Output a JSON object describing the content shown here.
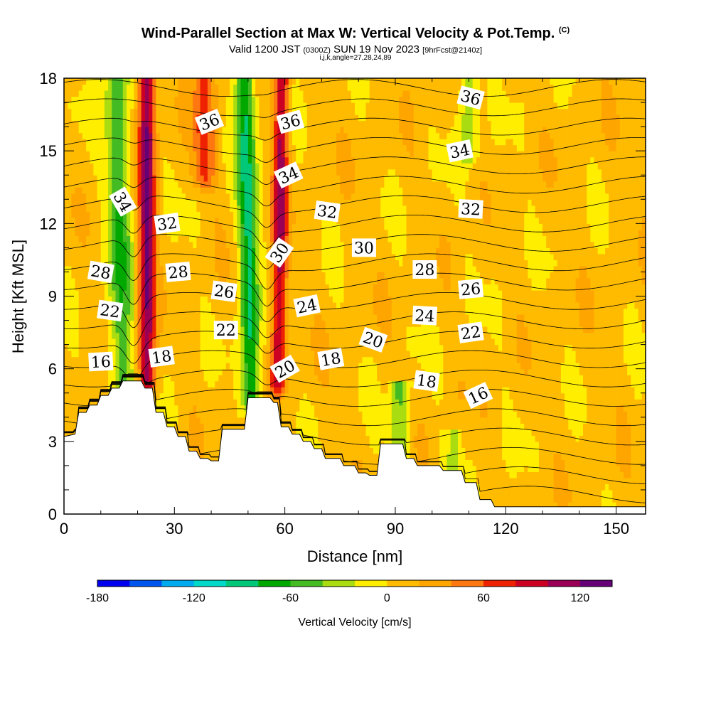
{
  "title_main": "Wind-Parallel Section at Max W: Vertical Velocity & Pot.Temp.",
  "title_tag": "(C)",
  "subtitle_a": "Valid 1200 JST",
  "subtitle_b": "(0300Z)",
  "subtitle_c": "SUN 19 Nov 2023",
  "subtitle_d": "[9hrFcst@2140z]",
  "subtitle2": "i,j,k,angle=27,28,24,89",
  "chart_data": {
    "type": "heatmap",
    "xlabel": "Distance [nm]",
    "ylabel": "Height [Kft MSL]",
    "xlim": [
      0,
      158
    ],
    "ylim": [
      0,
      18
    ],
    "x_ticks": [
      "0",
      "30",
      "60",
      "90",
      "120",
      "150"
    ],
    "x_tick_values": [
      0,
      30,
      60,
      90,
      120,
      150
    ],
    "y_ticks": [
      "0",
      "3",
      "6",
      "9",
      "12",
      "15",
      "18"
    ],
    "y_tick_values": [
      0,
      3,
      6,
      9,
      12,
      15,
      18
    ],
    "colorbar": {
      "label": "Vertical Velocity [cm/s]",
      "tick_labels": [
        "-180",
        "-120",
        "-60",
        "0",
        "60",
        "120"
      ],
      "tick_values": [
        -180,
        -120,
        -60,
        0,
        60,
        120
      ],
      "levels": [
        -180,
        -160,
        -140,
        -120,
        -100,
        -80,
        -60,
        -40,
        -20,
        0,
        20,
        40,
        60,
        80,
        100,
        120,
        140
      ],
      "colors": [
        "#0000ee",
        "#0055ee",
        "#00aaee",
        "#00d8c8",
        "#00c878",
        "#00a800",
        "#44bb22",
        "#aadd11",
        "#ffee00",
        "#ffbb00",
        "#ffa500",
        "#ff7711",
        "#ee2200",
        "#cc0022",
        "#990055",
        "#660077"
      ]
    },
    "terrain_kft": [
      [
        0,
        3.2
      ],
      [
        3,
        3.3
      ],
      [
        4,
        4.2
      ],
      [
        6,
        4.2
      ],
      [
        7,
        4.5
      ],
      [
        9,
        4.5
      ],
      [
        10,
        4.9
      ],
      [
        12,
        4.9
      ],
      [
        13,
        5.2
      ],
      [
        15,
        5.2
      ],
      [
        16,
        5.5
      ],
      [
        21,
        5.5
      ],
      [
        22,
        5.2
      ],
      [
        24,
        5.2
      ],
      [
        25,
        4.2
      ],
      [
        27,
        4.2
      ],
      [
        28,
        3.6
      ],
      [
        30,
        3.6
      ],
      [
        31,
        3.2
      ],
      [
        33,
        3.2
      ],
      [
        34,
        2.6
      ],
      [
        36,
        2.6
      ],
      [
        37,
        2.3
      ],
      [
        39,
        2.3
      ],
      [
        40,
        2.2
      ],
      [
        42,
        2.2
      ],
      [
        43,
        3.5
      ],
      [
        49,
        3.5
      ],
      [
        50,
        4.8
      ],
      [
        56,
        4.8
      ],
      [
        57,
        4.6
      ],
      [
        58,
        4.6
      ],
      [
        59,
        3.6
      ],
      [
        61,
        3.6
      ],
      [
        62,
        3.3
      ],
      [
        64,
        3.3
      ],
      [
        65,
        3.0
      ],
      [
        67,
        3.0
      ],
      [
        68,
        2.7
      ],
      [
        70,
        2.7
      ],
      [
        71,
        2.3
      ],
      [
        75,
        2.3
      ],
      [
        76,
        2.0
      ],
      [
        79,
        2.0
      ],
      [
        80,
        1.7
      ],
      [
        82,
        1.7
      ],
      [
        83,
        1.6
      ],
      [
        85,
        1.6
      ],
      [
        86,
        2.9
      ],
      [
        92,
        2.9
      ],
      [
        93,
        2.3
      ],
      [
        95,
        2.3
      ],
      [
        96,
        2.0
      ],
      [
        102,
        2.0
      ],
      [
        103,
        1.8
      ],
      [
        108,
        1.8
      ],
      [
        109,
        1.3
      ],
      [
        112,
        1.3
      ],
      [
        113,
        0.6
      ],
      [
        116,
        0.6
      ],
      [
        117,
        0.3
      ],
      [
        158,
        0.3
      ]
    ],
    "w_features": [
      {
        "x": 16.0,
        "z_min": 5.5,
        "z_max": 18,
        "halfwidth_nm": 3.0,
        "w": -70,
        "tilt_nm_per_kft": -0.15
      },
      {
        "x": 22.5,
        "z_min": 5.5,
        "z_max": 18,
        "halfwidth_nm": 2.2,
        "w": 110,
        "tilt_nm_per_kft": 0.0
      },
      {
        "x": 51.0,
        "z_min": 4.8,
        "z_max": 18,
        "halfwidth_nm": 2.5,
        "w": -95,
        "tilt_nm_per_kft": -0.15
      },
      {
        "x": 58.0,
        "z_min": 5.5,
        "z_max": 18,
        "halfwidth_nm": 2.0,
        "w": 95,
        "tilt_nm_per_kft": 0.1
      },
      {
        "x": 91.0,
        "z_min": 2.5,
        "z_max": 5.5,
        "halfwidth_nm": 2.5,
        "w": -55,
        "tilt_nm_per_kft": 0.0
      },
      {
        "x": 106.0,
        "z_min": 2.0,
        "z_max": 3.5,
        "halfwidth_nm": 2.0,
        "w": -35,
        "tilt_nm_per_kft": 0.0
      },
      {
        "x": 110.0,
        "z_min": 15.0,
        "z_max": 18,
        "halfwidth_nm": 2.5,
        "w": -45,
        "tilt_nm_per_kft": 0.0
      },
      {
        "x": 38.0,
        "z_min": 14.0,
        "z_max": 18,
        "halfwidth_nm": 3.0,
        "w": 55,
        "tilt_nm_per_kft": 0.0
      }
    ],
    "theta_contour_labels": [
      {
        "text": "36",
        "x": 39.5,
        "z": 16.2,
        "angle": -22
      },
      {
        "text": "36",
        "x": 61.5,
        "z": 16.2,
        "angle": -15
      },
      {
        "text": "36",
        "x": 110.5,
        "z": 17.2,
        "angle": 15
      },
      {
        "text": "34",
        "x": 16.0,
        "z": 12.9,
        "angle": 60
      },
      {
        "text": "34",
        "x": 61.0,
        "z": 14.0,
        "angle": -25
      },
      {
        "text": "34",
        "x": 107.5,
        "z": 15.0,
        "angle": -12
      },
      {
        "text": "32",
        "x": 28.0,
        "z": 12.0,
        "angle": -8
      },
      {
        "text": "32",
        "x": 71.5,
        "z": 12.5,
        "angle": 8
      },
      {
        "text": "32",
        "x": 110.5,
        "z": 12.6,
        "angle": 3
      },
      {
        "text": "30",
        "x": 58.5,
        "z": 10.8,
        "angle": -55
      },
      {
        "text": "30",
        "x": 81.5,
        "z": 11.0,
        "angle": 0
      },
      {
        "text": "28",
        "x": 10.0,
        "z": 10.0,
        "angle": 10
      },
      {
        "text": "28",
        "x": 31.0,
        "z": 10.0,
        "angle": -5
      },
      {
        "text": "28",
        "x": 98.0,
        "z": 10.1,
        "angle": 0
      },
      {
        "text": "26",
        "x": 43.5,
        "z": 9.2,
        "angle": 8
      },
      {
        "text": "26",
        "x": 110.5,
        "z": 9.3,
        "angle": -5
      },
      {
        "text": "24",
        "x": 66.0,
        "z": 8.6,
        "angle": -12
      },
      {
        "text": "24",
        "x": 98.0,
        "z": 8.2,
        "angle": 3
      },
      {
        "text": "22",
        "x": 12.5,
        "z": 8.4,
        "angle": 8
      },
      {
        "text": "22",
        "x": 44.0,
        "z": 7.6,
        "angle": 0
      },
      {
        "text": "22",
        "x": 110.5,
        "z": 7.5,
        "angle": -8
      },
      {
        "text": "20",
        "x": 60.0,
        "z": 6.0,
        "angle": -30
      },
      {
        "text": "20",
        "x": 84.0,
        "z": 7.2,
        "angle": 20
      },
      {
        "text": "18",
        "x": 26.5,
        "z": 6.5,
        "angle": -8
      },
      {
        "text": "18",
        "x": 72.5,
        "z": 6.4,
        "angle": -10
      },
      {
        "text": "18",
        "x": 98.5,
        "z": 5.5,
        "angle": 8
      },
      {
        "text": "16",
        "x": 10.0,
        "z": 6.3,
        "angle": -3
      },
      {
        "text": "16",
        "x": 112.5,
        "z": 4.9,
        "angle": -25
      }
    ]
  }
}
